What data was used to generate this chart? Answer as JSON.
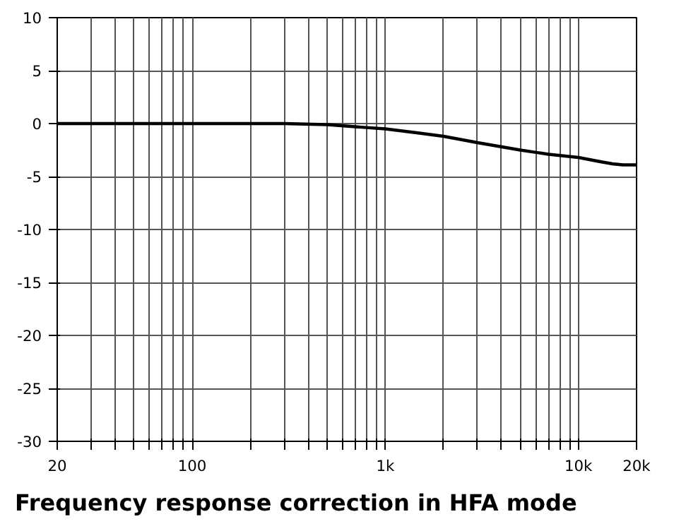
{
  "chart_data": {
    "type": "line",
    "title": "Frequency response correction in HFA mode",
    "x": [
      20,
      100,
      300,
      500,
      700,
      1000,
      1500,
      2000,
      3000,
      5000,
      7000,
      10000,
      13000,
      15000,
      17000,
      20000
    ],
    "series": [
      {
        "color": "#000000",
        "values": [
          0,
          0,
          0,
          -0.1,
          -0.3,
          -0.5,
          -0.9,
          -1.2,
          -1.8,
          -2.5,
          -2.9,
          -3.2,
          -3.6,
          -3.8,
          -3.9,
          -3.9
        ]
      }
    ],
    "log": "x",
    "xlim": [
      20,
      20000
    ],
    "ylim": [
      -30,
      10
    ],
    "xticks": [
      20,
      {
        "value": 30,
        "label": null
      },
      {
        "value": 40,
        "label": null
      },
      {
        "value": 50,
        "label": null
      },
      {
        "value": 60,
        "label": null
      },
      {
        "value": 70,
        "label": null
      },
      {
        "value": 80,
        "label": null
      },
      {
        "value": 90,
        "label": null
      },
      100,
      {
        "value": 200,
        "label": null
      },
      {
        "value": 300,
        "label": null
      },
      {
        "value": 400,
        "label": null
      },
      {
        "value": 500,
        "label": null
      },
      {
        "value": 600,
        "label": null
      },
      {
        "value": 700,
        "label": null
      },
      {
        "value": 800,
        "label": null
      },
      {
        "value": 900,
        "label": null
      },
      {
        "value": 1000,
        "label": "1k"
      },
      {
        "value": 2000,
        "label": null
      },
      {
        "value": 3000,
        "label": null
      },
      {
        "value": 4000,
        "label": null
      },
      {
        "value": 5000,
        "label": null
      },
      {
        "value": 6000,
        "label": null
      },
      {
        "value": 7000,
        "label": null
      },
      {
        "value": 8000,
        "label": null
      },
      {
        "value": 9000,
        "label": null
      },
      {
        "value": 10000,
        "label": "10k"
      },
      {
        "value": 20000,
        "label": "20k"
      }
    ],
    "yticks": [
      -30,
      -25,
      -20,
      -15,
      -10,
      -5,
      0,
      5,
      10
    ],
    "grid": true,
    "marker": "none",
    "line_style": "solid"
  }
}
